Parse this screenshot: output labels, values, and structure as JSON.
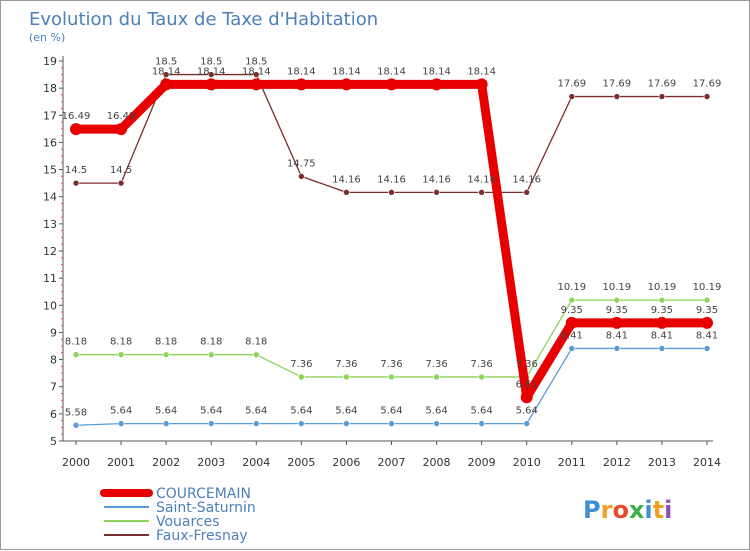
{
  "chart_data": {
    "type": "line",
    "title": "Evolution du Taux de Taxe d'Habitation",
    "subtitle": "(en %)",
    "xlabel": "",
    "ylabel": "",
    "x": [
      2000,
      2001,
      2002,
      2003,
      2004,
      2005,
      2006,
      2007,
      2008,
      2009,
      2010,
      2011,
      2012,
      2013,
      2014
    ],
    "ylim": [
      5,
      19
    ],
    "y_ticks": [
      5,
      6,
      7,
      8,
      9,
      10,
      11,
      12,
      13,
      14,
      15,
      16,
      17,
      18,
      19
    ],
    "y_tick_labels": [
      "5",
      "6",
      "7",
      "8",
      "9",
      "10",
      "11",
      "12",
      "13",
      "14",
      "15",
      "16",
      "17",
      "18",
      "19"
    ],
    "grid": false,
    "legend_position": "bottom-left",
    "series": [
      {
        "name": "COURCEMAIN",
        "color": "#e80000",
        "emphasis": true,
        "values": [
          16.49,
          16.49,
          18.14,
          18.14,
          18.14,
          18.14,
          18.14,
          18.14,
          18.14,
          18.14,
          6.61,
          9.35,
          9.35,
          9.35,
          9.35
        ],
        "labels": [
          "16.49",
          "16.49",
          "18.14",
          "18.14",
          "18.14",
          "18.14",
          "18.14",
          "18.14",
          "18.14",
          "18.14",
          "6.61",
          "9.35",
          "9.35",
          "9.35",
          "9.35"
        ]
      },
      {
        "name": "Saint-Saturnin",
        "color": "#5b9bd5",
        "values": [
          5.58,
          5.64,
          5.64,
          5.64,
          5.64,
          5.64,
          5.64,
          5.64,
          5.64,
          5.64,
          5.64,
          8.41,
          8.41,
          8.41,
          8.41
        ],
        "labels": [
          "5.58",
          "5.64",
          "5.64",
          "5.64",
          "5.64",
          "5.64",
          "5.64",
          "5.64",
          "5.64",
          "5.64",
          "5.64",
          "8.41",
          "8.41",
          "8.41",
          "8.41"
        ]
      },
      {
        "name": "Vouarces",
        "color": "#8ed45a",
        "values": [
          8.18,
          8.18,
          8.18,
          8.18,
          8.18,
          7.36,
          7.36,
          7.36,
          7.36,
          7.36,
          7.36,
          10.19,
          10.19,
          10.19,
          10.19
        ],
        "labels": [
          "8.18",
          "8.18",
          "8.18",
          "8.18",
          "8.18",
          "7.36",
          "7.36",
          "7.36",
          "7.36",
          "7.36",
          "7.36",
          "10.19",
          "10.19",
          "10.19",
          "10.19"
        ]
      },
      {
        "name": "Faux-Fresnay",
        "color": "#7b2e2e",
        "values": [
          14.5,
          14.5,
          18.5,
          18.5,
          18.5,
          14.75,
          14.16,
          14.16,
          14.16,
          14.16,
          14.16,
          17.69,
          17.69,
          17.69,
          17.69
        ],
        "labels": [
          "14.5",
          "14.5",
          "18.5",
          "18.5",
          "18.5",
          "14.75",
          "14.16",
          "14.16",
          "14.16",
          "14.16",
          "14.16",
          "17.69",
          "17.69",
          "17.69",
          "17.69"
        ]
      }
    ]
  },
  "logo": {
    "text": "Proxiti",
    "letters": [
      "P",
      "r",
      "o",
      "x",
      "i",
      "t",
      "i"
    ]
  }
}
